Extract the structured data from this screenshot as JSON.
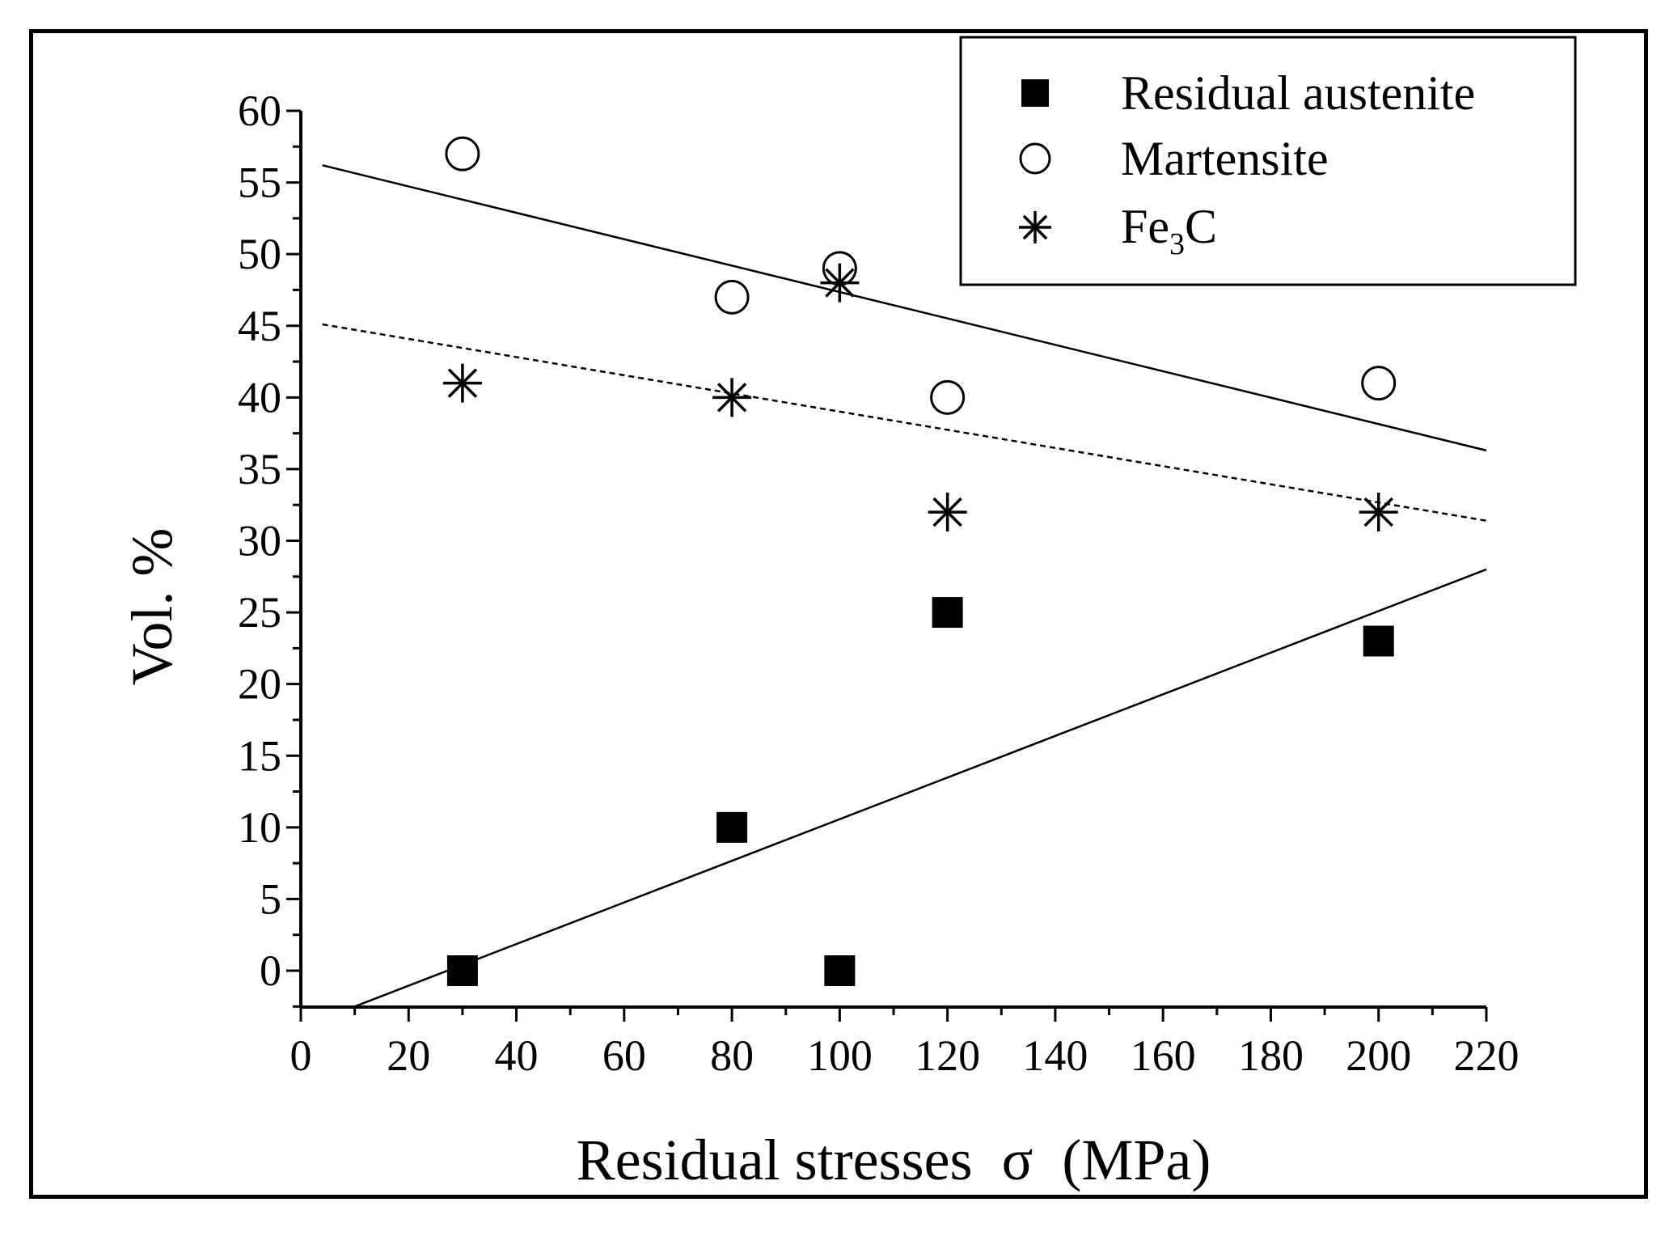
{
  "colors": {
    "background": "#ffffff",
    "ink": "#000000"
  },
  "chart_data": {
    "type": "scatter",
    "title": "",
    "xlabel": "Residual stresses  σ  (MPa)",
    "ylabel": "Vol. %",
    "xlim": [
      0,
      220
    ],
    "ylim": [
      -2.5,
      60
    ],
    "x_ticks": [
      "0",
      "20",
      "40",
      "60",
      "80",
      "100",
      "120",
      "140",
      "160",
      "180",
      "200",
      "220"
    ],
    "y_ticks": [
      "0",
      "5",
      "10",
      "15",
      "20",
      "25",
      "30",
      "35",
      "40",
      "45",
      "50",
      "55",
      "60"
    ],
    "legend_position": "top-right",
    "series": [
      {
        "name": "Residual austenite",
        "marker": "filled-square",
        "x": [
          30,
          80,
          100,
          120,
          200
        ],
        "y": [
          0,
          10,
          0,
          25,
          23
        ],
        "trend": {
          "style": "solid",
          "x": [
            10,
            220
          ],
          "y": [
            -2.5,
            28
          ]
        }
      },
      {
        "name": "Martensite",
        "marker": "open-circle",
        "x": [
          30,
          80,
          100,
          120,
          200
        ],
        "y": [
          57,
          47,
          49,
          40,
          41
        ],
        "trend": {
          "style": "solid",
          "x": [
            4,
            220
          ],
          "y": [
            56.2,
            36.3
          ]
        }
      },
      {
        "name": "Fe3C",
        "name_main": "Fe",
        "name_sub": "3",
        "name_tail": "C",
        "marker": "asterisk",
        "x": [
          30,
          80,
          100,
          120,
          200
        ],
        "y": [
          41,
          40,
          48,
          32,
          32
        ],
        "trend": {
          "style": "dashed",
          "x": [
            4,
            220
          ],
          "y": [
            45.1,
            31.4
          ]
        }
      }
    ]
  }
}
